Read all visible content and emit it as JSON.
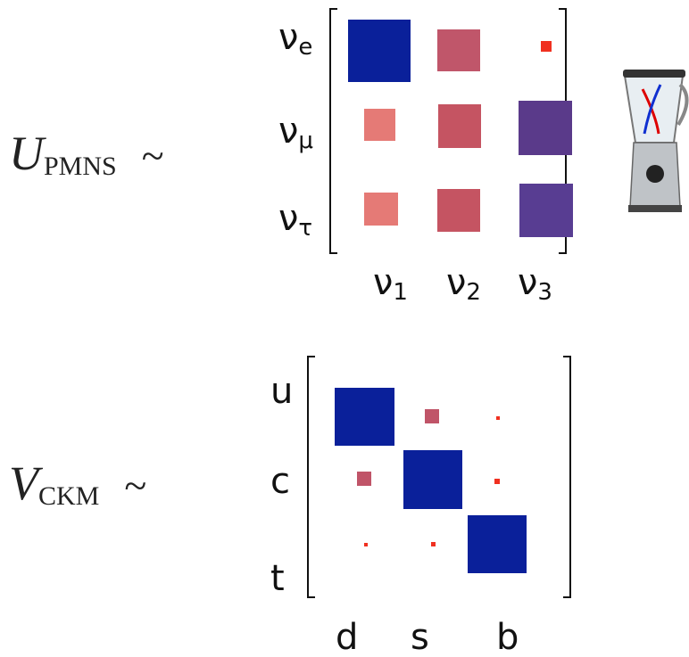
{
  "pmns": {
    "symbol": "U",
    "subscript": "PMNS",
    "relation": "~",
    "rows": [
      {
        "symbol": "ν",
        "sub": "e"
      },
      {
        "symbol": "ν",
        "sub": "μ"
      },
      {
        "symbol": "ν",
        "sub": "τ"
      }
    ],
    "columns": [
      {
        "symbol": "ν",
        "sub": "1"
      },
      {
        "symbol": "ν",
        "sub": "2"
      },
      {
        "symbol": "ν",
        "sub": "3"
      }
    ]
  },
  "ckm": {
    "symbol": "V",
    "subscript": "CKM",
    "relation": "~",
    "rows": [
      "u",
      "c",
      "t"
    ],
    "columns": [
      "d",
      "s",
      "b"
    ]
  }
}
